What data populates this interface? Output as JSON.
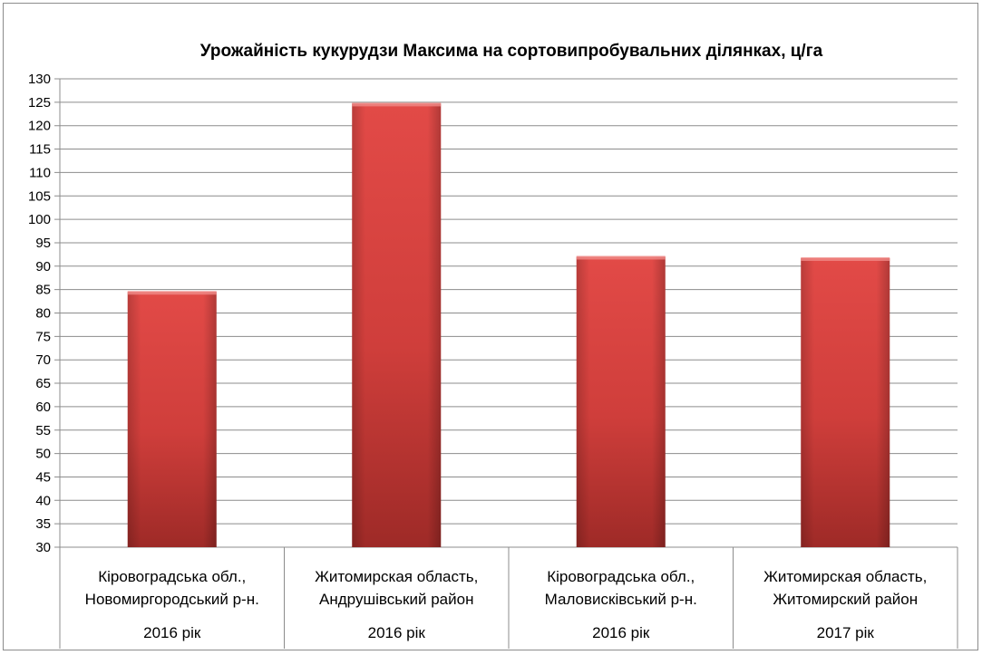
{
  "chart_data": {
    "type": "bar",
    "title": "Урожайність кукурудзи Максима на сортовипробувальних ділянках, ц/га",
    "categories": [
      {
        "line1": "Кіровоградська обл.,",
        "line2": "Новомиргородський р-н.",
        "year": "2016 рік"
      },
      {
        "line1": "Житомирская область,",
        "line2": "Андрушівський район",
        "year": "2016 рік"
      },
      {
        "line1": "Кіровоградська обл.,",
        "line2": "Маловисківський р-н.",
        "year": "2016 рік"
      },
      {
        "line1": "Житомирская область,",
        "line2": "Житомирский район",
        "year": "2017 рік"
      }
    ],
    "values": [
      84.5,
      124.7,
      92,
      91.7
    ],
    "ylim": [
      30,
      130
    ],
    "ytick_step": 5,
    "grid": true,
    "colors": {
      "bar": "#d64541",
      "bar_dark": "#9e2a27",
      "grid": "#8c8c8c"
    }
  }
}
